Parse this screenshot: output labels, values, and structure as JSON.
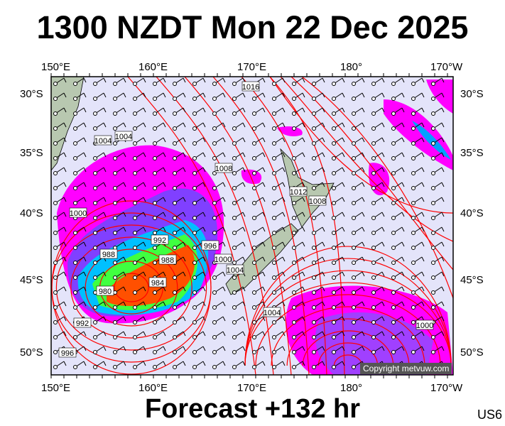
{
  "title": "1300 NZDT Mon 22 Dec 2025",
  "footer": "Forecast +132 hr",
  "code": "US6",
  "copyright": "Copyright metvuw.com",
  "lon_labels": [
    "150°E",
    "160°E",
    "170°E",
    "180°",
    "170°W"
  ],
  "lat_labels": [
    "30°S",
    "35°S",
    "40°S",
    "45°S",
    "50°S"
  ],
  "isobar_labels": [
    "1016",
    "1004",
    "1004",
    "1008",
    "1012",
    "1008",
    "1000",
    "992",
    "996",
    "1000",
    "988",
    "988",
    "984",
    "980",
    "1004",
    "992",
    "996",
    "1004",
    "1000"
  ],
  "colors": {
    "ocean": "#e4e4fa",
    "land": "#b8c8b0",
    "isobar": "#ff0000",
    "rain_light": "#ff00ff",
    "rain_mid": "#8040ff",
    "rain_heavy": "#ff4000"
  }
}
